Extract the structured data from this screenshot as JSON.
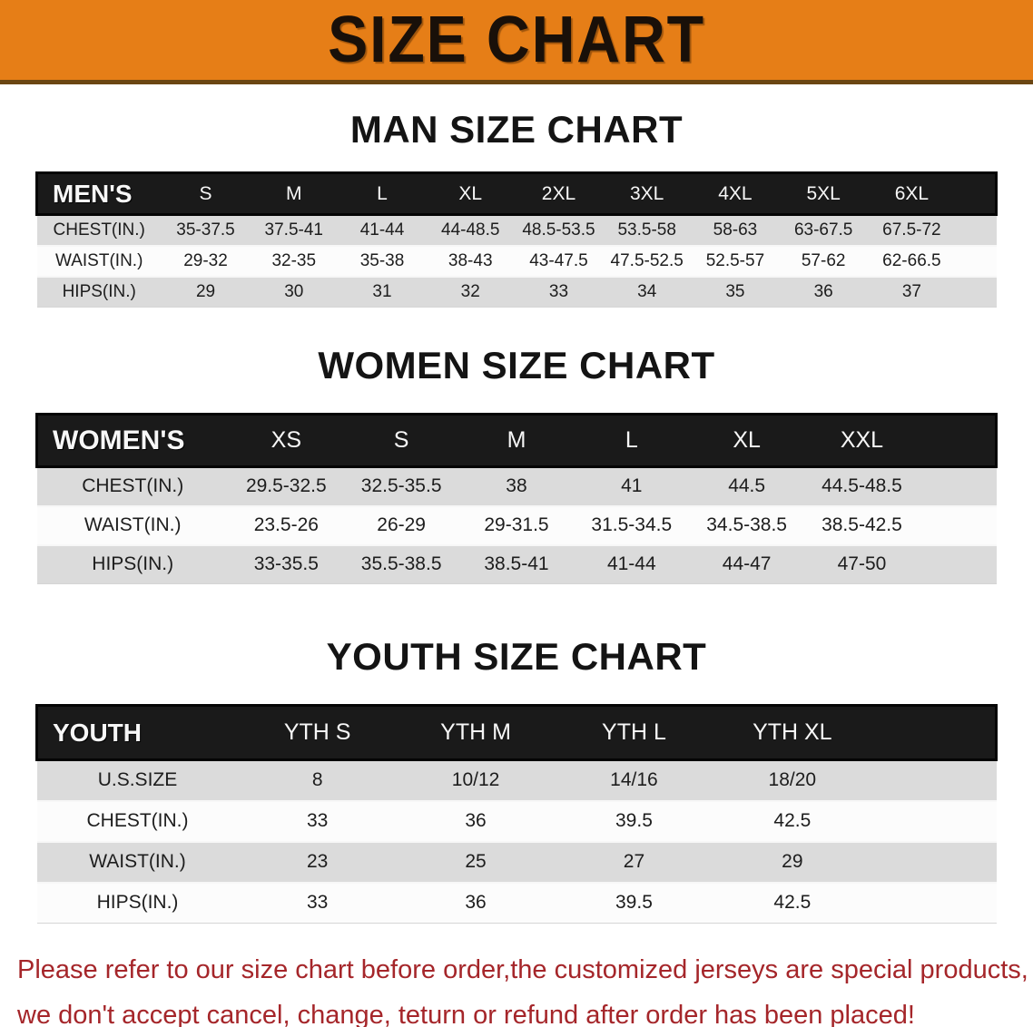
{
  "banner": {
    "title": "SIZE CHART"
  },
  "sections": {
    "men": {
      "heading": "MAN SIZE CHART",
      "table": {
        "header": [
          "MEN'S",
          "S",
          "M",
          "L",
          "XL",
          "2XL",
          "3XL",
          "4XL",
          "5XL",
          "6XL"
        ],
        "rows": [
          [
            "CHEST(IN.)",
            "35-37.5",
            "37.5-41",
            "41-44",
            "44-48.5",
            "48.5-53.5",
            "53.5-58",
            "58-63",
            "63-67.5",
            "67.5-72"
          ],
          [
            "WAIST(IN.)",
            "29-32",
            "32-35",
            "35-38",
            "38-43",
            "43-47.5",
            "47.5-52.5",
            "52.5-57",
            "57-62",
            "62-66.5"
          ],
          [
            "HIPS(IN.)",
            "29",
            "30",
            "31",
            "32",
            "33",
            "34",
            "35",
            "36",
            "37"
          ]
        ]
      }
    },
    "women": {
      "heading": "WOMEN SIZE CHART",
      "table": {
        "header": [
          "WOMEN'S",
          "XS",
          "S",
          "M",
          "L",
          "XL",
          "XXL"
        ],
        "rows": [
          [
            "CHEST(IN.)",
            "29.5-32.5",
            "32.5-35.5",
            "38",
            "41",
            "44.5",
            "44.5-48.5"
          ],
          [
            "WAIST(IN.)",
            "23.5-26",
            "26-29",
            "29-31.5",
            "31.5-34.5",
            "34.5-38.5",
            "38.5-42.5"
          ],
          [
            "HIPS(IN.)",
            "33-35.5",
            "35.5-38.5",
            "38.5-41",
            "41-44",
            "44-47",
            "47-50"
          ]
        ]
      }
    },
    "youth": {
      "heading": "YOUTH SIZE CHART",
      "table": {
        "header": [
          "YOUTH",
          "YTH S",
          "YTH M",
          "YTH L",
          "YTH XL"
        ],
        "rows": [
          [
            "U.S.SIZE",
            "8",
            "10/12",
            "14/16",
            "18/20"
          ],
          [
            "CHEST(IN.)",
            "33",
            "36",
            "39.5",
            "42.5"
          ],
          [
            "WAIST(IN.)",
            "23",
            "25",
            "27",
            "29"
          ],
          [
            "HIPS(IN.)",
            "33",
            "36",
            "39.5",
            "42.5"
          ]
        ]
      }
    }
  },
  "footer": {
    "line1": "Please refer to our size chart before order,the customized jerseys are special products,",
    "line2": "we don't accept cancel, change, teturn or refund after order has been placed!"
  },
  "colors": {
    "banner_orange": "#e67e17",
    "header_black": "#1a1a1a",
    "row_gray": "#dbdbdb",
    "footer_red": "#a5262a"
  }
}
